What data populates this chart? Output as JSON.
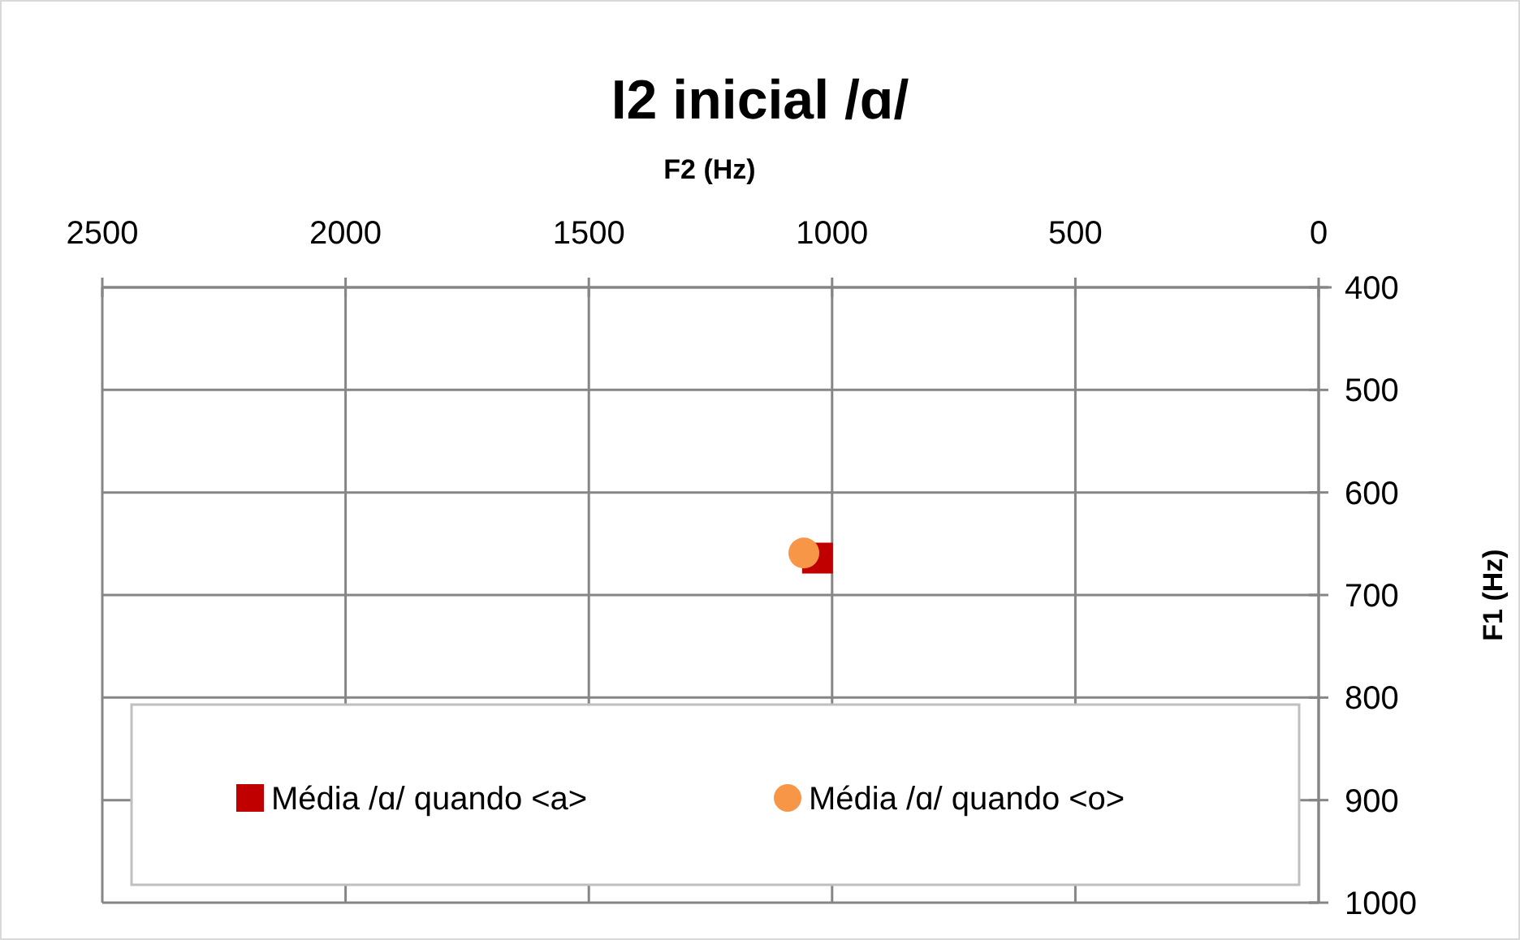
{
  "chart_data": {
    "type": "scatter",
    "title": "I2 inicial /ɑ/",
    "xlabel": "F2 (Hz)",
    "ylabel": "F1 (Hz)",
    "xlim": [
      2500,
      0
    ],
    "xticks": [
      2500,
      2000,
      1500,
      1000,
      500,
      0
    ],
    "ylim": [
      1000,
      400
    ],
    "yticks": [
      400,
      500,
      600,
      700,
      800,
      900,
      1000
    ],
    "grid": true,
    "legend": "bottom",
    "series": [
      {
        "name": "Média /ɑ/ quando <a>",
        "color": "#c00000",
        "marker": "square",
        "x": [
          1030
        ],
        "values": [
          664
        ]
      },
      {
        "name": "Média /ɑ/ quando <o>",
        "color": "#f79646",
        "marker": "circle",
        "x": [
          1058
        ],
        "values": [
          659
        ]
      }
    ]
  }
}
